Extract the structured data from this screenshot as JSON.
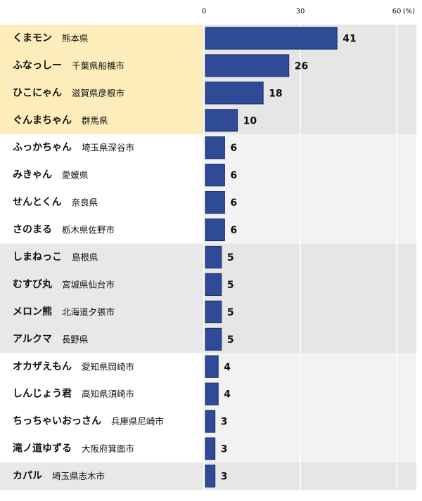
{
  "chart_data": {
    "type": "bar",
    "orientation": "horizontal",
    "categories": [
      "くまモン",
      "ふなっしー",
      "ひこにゃん",
      "ぐんまちゃん",
      "ふっかちゃん",
      "みきゃん",
      "せんとくん",
      "さのまる",
      "しまねっこ",
      "むすび丸",
      "メロン熊",
      "アルクマ",
      "オカザえもん",
      "しんじょう君",
      "ちっちゃいおっさん",
      "滝ノ道ゆずる",
      "カパル"
    ],
    "locations": [
      "熊本県",
      "千葉県船橋市",
      "滋賀県彦根市",
      "群馬県",
      "埼玉県深谷市",
      "愛媛県",
      "奈良県",
      "栃木県佐野市",
      "島根県",
      "宮城県仙台市",
      "北海道夕張市",
      "長野県",
      "愛知県岡崎市",
      "高知県須崎市",
      "兵庫県尼崎市",
      "大阪府箕面市",
      "埼玉県志木市"
    ],
    "values": [
      41,
      26,
      18,
      10,
      6,
      6,
      6,
      6,
      5,
      5,
      5,
      5,
      4,
      4,
      3,
      3,
      3
    ],
    "color": "#2f4b98",
    "xlim": [
      0,
      60
    ],
    "xticks": [
      0,
      30,
      60
    ],
    "x_label": "(%)",
    "grid": true
  }
}
